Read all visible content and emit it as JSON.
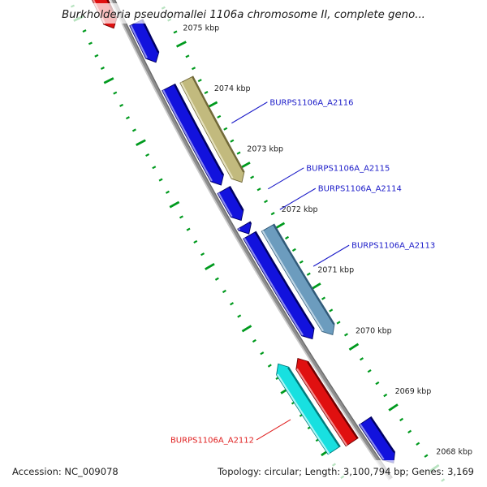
{
  "title": "Burkholderia pseudomallei 1106a chromosome II, complete geno...",
  "footer": {
    "accession": "Accession: NC_009078",
    "stats": "Topology: circular; Length: 3,100,794 bp; Genes: 3,169"
  },
  "palette": {
    "blue": {
      "fill": "#1212DD",
      "dark": "#00005E",
      "light": "#8A8AF2"
    },
    "olive": {
      "fill": "#C2BA7E",
      "dark": "#6E6636",
      "light": "#E6E2C0"
    },
    "steelblue": {
      "fill": "#6C9CBE",
      "dark": "#2F5876",
      "light": "#BFD6E6"
    },
    "red": {
      "fill": "#E01010",
      "dark": "#6E0000",
      "light": "#F49292"
    },
    "cyan": {
      "fill": "#18E0E0",
      "dark": "#007878",
      "light": "#ACF6F6"
    },
    "tick_green": "#009A1E",
    "backbone": "#8E8E8E",
    "backbone_light": "#CACACA",
    "backbone_dark": "#6A6A6A",
    "label_blue": "#1A1AC8",
    "label_red": "#E02020"
  },
  "chart_data": {
    "type": "genome-map-arc",
    "sequence": "Burkholderia pseudomallei 1106a chromosome II",
    "unit": "kbp",
    "visible_range_kbp": [
      2067.7,
      2076.0
    ],
    "ruler": {
      "major_interval_kbp": 1,
      "minor_interval_kbp": 0.2,
      "major_labels": [
        {
          "value": 2075,
          "text": "2075 kbp"
        },
        {
          "value": 2074,
          "text": "2074 kbp"
        },
        {
          "value": 2073,
          "text": "2073 kbp"
        },
        {
          "value": 2072,
          "text": "2072 kbp"
        },
        {
          "value": 2071,
          "text": "2071 kbp"
        },
        {
          "value": 2070,
          "text": "2070 kbp"
        },
        {
          "value": 2069,
          "text": "2069 kbp"
        },
        {
          "value": 2068,
          "text": "2068 kbp"
        }
      ]
    },
    "genes": [
      {
        "id": "g1",
        "color": "red",
        "ring": 1,
        "side": -1,
        "tail_kbp": 2076.5,
        "head_kbp": 2075.65
      },
      {
        "id": "g2",
        "color": "blue",
        "ring": 1,
        "side": 1,
        "tail_kbp": 2075.58,
        "head_kbp": 2074.93
      },
      {
        "id": "g3",
        "color": "blue",
        "ring": 1,
        "side": 1,
        "tail_kbp": 2074.52,
        "head_kbp": 2072.92
      },
      {
        "id": "g4",
        "color": "olive",
        "ring": 2,
        "side": 1,
        "tail_kbp": 2074.5,
        "head_kbp": 2072.81
      },
      {
        "id": "g5",
        "color": "blue",
        "ring": 1,
        "side": 1,
        "tail_kbp": 2072.84,
        "head_kbp": 2072.34
      },
      {
        "id": "g6",
        "color": "blue",
        "ring": 1,
        "side": 1,
        "tail_kbp": 2072.26,
        "head_kbp": 2072.12
      },
      {
        "id": "g7",
        "color": "blue",
        "ring": 1,
        "side": 1,
        "tail_kbp": 2072.1,
        "head_kbp": 2070.4
      },
      {
        "id": "g8",
        "color": "steelblue",
        "ring": 2,
        "side": 1,
        "tail_kbp": 2072.06,
        "head_kbp": 2070.3
      },
      {
        "id": "g9",
        "color": "red",
        "ring": 1,
        "side": -1,
        "tail_kbp": 2068.92,
        "head_kbp": 2070.28
      },
      {
        "id": "g10",
        "color": "cyan",
        "ring": 2,
        "side": -1,
        "tail_kbp": 2068.96,
        "head_kbp": 2070.36
      },
      {
        "id": "g11",
        "color": "blue",
        "ring": 1,
        "side": 1,
        "tail_kbp": 2069.06,
        "head_kbp": 2068.37
      }
    ],
    "gene_labels": [
      {
        "text": "BURPS1106A_A2116",
        "kbp": 2073.63,
        "side": 1,
        "color": "label_blue"
      },
      {
        "text": "BURPS1106A_A2115",
        "kbp": 2072.54,
        "side": 1,
        "color": "label_blue"
      },
      {
        "text": "BURPS1106A_A2114",
        "kbp": 2072.2,
        "side": 1,
        "color": "label_blue"
      },
      {
        "text": "BURPS1106A_A2113",
        "kbp": 2071.26,
        "side": 1,
        "color": "label_blue"
      },
      {
        "text": "BURPS1106A_A2112",
        "kbp": 2069.63,
        "side": -1,
        "color": "label_red"
      }
    ]
  }
}
